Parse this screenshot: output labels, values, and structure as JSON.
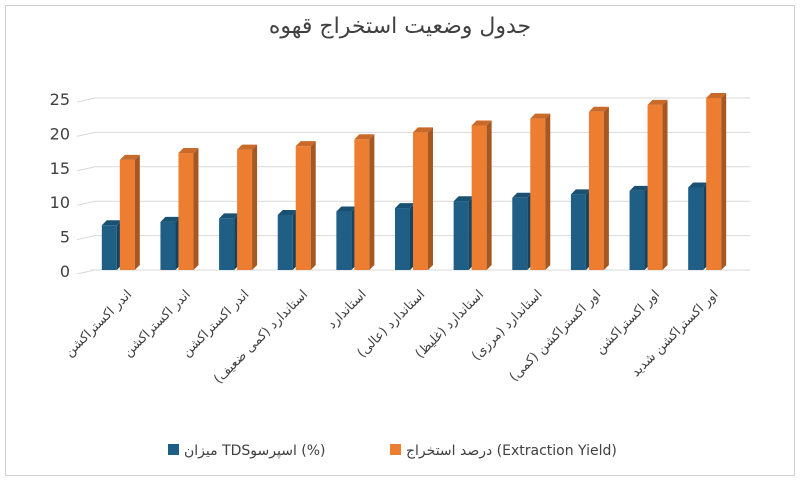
{
  "chart_data": {
    "type": "bar",
    "title": "جدول وضعیت استخراج قهوه",
    "categories": [
      "اندر اکستراکشن",
      "اندر اکستراکشن",
      "اندر اکستراکشن",
      "استاندارد (کمی ضعیف)",
      "استاندارد",
      "استاندارد (عالی)",
      "استاندارد (غلیظ)",
      "استاندارد (مرزی)",
      "اور اکستراکشن (کمی)",
      "اور اکستراکشن",
      "اور اکستراکشن شدید"
    ],
    "series": [
      {
        "name": "میزان TDSاسپرسو (%)",
        "color": "#1f5f86",
        "values": [
          6.5,
          7,
          7.5,
          8,
          8.5,
          9,
          10,
          10.5,
          11,
          11.5,
          12
        ]
      },
      {
        "name": "درصد استخراج (Extraction Yield)",
        "color": "#ed7d31",
        "values": [
          16,
          17,
          17.5,
          18,
          19,
          20,
          21,
          22,
          23,
          24,
          25
        ]
      }
    ],
    "yticks": [
      "0",
      "5",
      "10",
      "15",
      "20",
      "25"
    ],
    "ylim": [
      0,
      25
    ],
    "grid": true,
    "legend_position": "bottom",
    "xlabel": "",
    "ylabel": ""
  }
}
